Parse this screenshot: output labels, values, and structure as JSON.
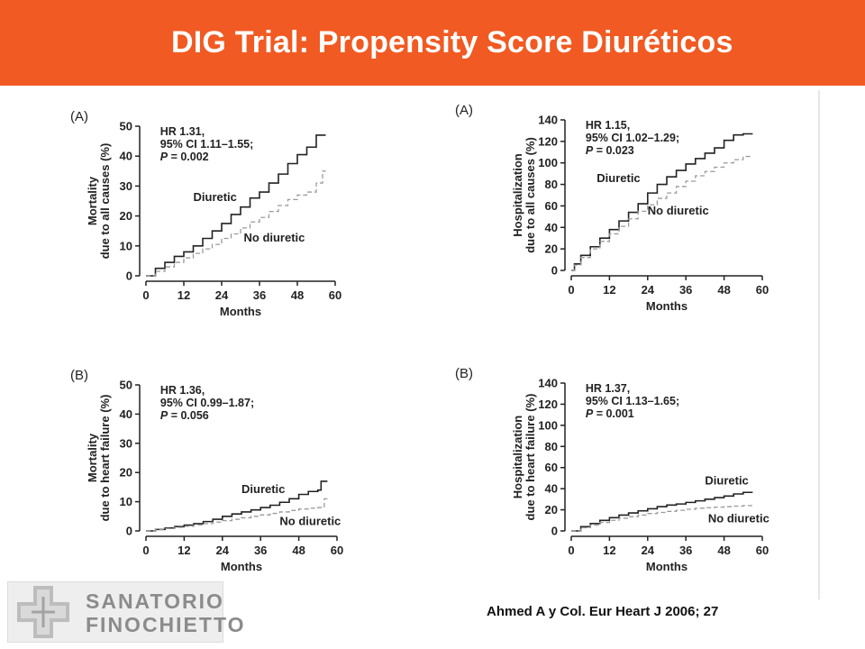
{
  "slide": {
    "title": "DIG Trial: Propensity Score Diuréticos",
    "citation": "Ahmed A y Col. Eur Heart J 2006; 27",
    "logo": {
      "line1": "SANATORIO",
      "line2": "FINOCHIETTO"
    }
  },
  "colors": {
    "banner": "#f15a22",
    "diuretic": "#222222",
    "no_diuretic": "#9a9a9a"
  },
  "chart_data": [
    {
      "type": "line",
      "panel_label": "(A)",
      "xlabel": "Months",
      "ylabel_line1": "Mortality",
      "ylabel_line2": "due to all causes (%)",
      "xlim": [
        0,
        60
      ],
      "ylim": [
        0,
        50
      ],
      "xticks": [
        0,
        12,
        24,
        36,
        48,
        60
      ],
      "yticks": [
        0,
        10,
        20,
        30,
        40,
        50
      ],
      "annotation": [
        "HR 1.31,",
        "95% CI 1.11–1.55;",
        "P = 0.002"
      ],
      "series": [
        {
          "name": "Diuretic",
          "style": "solid",
          "x": [
            0,
            3,
            6,
            9,
            12,
            15,
            18,
            21,
            24,
            27,
            30,
            33,
            36,
            39,
            42,
            45,
            48,
            51,
            54,
            57
          ],
          "y": [
            0,
            2.5,
            4.5,
            6.5,
            8,
            10,
            12.5,
            15,
            17.5,
            20.5,
            23,
            26,
            28,
            31,
            34,
            37.5,
            40.5,
            43,
            47,
            47
          ]
        },
        {
          "name": "No diuretic",
          "style": "dashed",
          "x": [
            0,
            3,
            6,
            9,
            12,
            15,
            18,
            21,
            24,
            27,
            30,
            33,
            36,
            39,
            42,
            45,
            48,
            51,
            54,
            56,
            57
          ],
          "y": [
            0,
            1.5,
            3,
            4.5,
            6,
            7.5,
            9,
            10.5,
            12.5,
            14,
            16,
            18,
            19.5,
            21.5,
            23.5,
            25.5,
            27,
            28,
            31,
            35,
            35
          ]
        }
      ],
      "series_labels": [
        {
          "text": "Diuretic",
          "x": 15,
          "y": 25
        },
        {
          "text": "No diuretic",
          "x": 31,
          "y": 11.5
        }
      ]
    },
    {
      "type": "line",
      "panel_label": "(A)",
      "xlabel": "Months",
      "ylabel_line1": "Hospitalization",
      "ylabel_line2": "due to all causes (%)",
      "xlim": [
        0,
        60
      ],
      "ylim": [
        0,
        140
      ],
      "xticks": [
        0,
        12,
        24,
        36,
        48,
        60
      ],
      "yticks": [
        0,
        20,
        40,
        60,
        80,
        100,
        120,
        140
      ],
      "annotation": [
        "HR 1.15,",
        "95% CI 1.02–1.29;",
        "P = 0.023"
      ],
      "series": [
        {
          "name": "Diuretic",
          "style": "solid",
          "x": [
            0,
            1,
            3,
            6,
            9,
            12,
            15,
            18,
            21,
            24,
            27,
            30,
            33,
            36,
            39,
            42,
            45,
            48,
            51,
            54,
            57
          ],
          "y": [
            0,
            6,
            14,
            22,
            30,
            38,
            46,
            54,
            62,
            72,
            80,
            87,
            93,
            99,
            104,
            109,
            114,
            121,
            126,
            127,
            127
          ]
        },
        {
          "name": "No diuretic",
          "style": "dashed",
          "x": [
            0,
            1,
            3,
            6,
            9,
            12,
            15,
            18,
            21,
            24,
            27,
            30,
            33,
            36,
            39,
            42,
            45,
            48,
            51,
            54,
            57
          ],
          "y": [
            0,
            5,
            12,
            20,
            27,
            34,
            41,
            48,
            55,
            61,
            67,
            72,
            78,
            83,
            88,
            92,
            96,
            100,
            103,
            106,
            106
          ]
        }
      ],
      "series_labels": [
        {
          "text": "Diuretic",
          "x": 8,
          "y": 82
        },
        {
          "text": "No diuretic",
          "x": 24,
          "y": 52
        }
      ]
    },
    {
      "type": "line",
      "panel_label": "(B)",
      "xlabel": "Months",
      "ylabel_line1": "Mortality",
      "ylabel_line2": "due to heart failure (%)",
      "xlim": [
        0,
        60
      ],
      "ylim": [
        0,
        50
      ],
      "xticks": [
        0,
        12,
        24,
        36,
        48,
        60
      ],
      "yticks": [
        0,
        10,
        20,
        30,
        40,
        50
      ],
      "annotation": [
        "HR 1.36,",
        "95% CI 0.99–1.87;",
        "P = 0.056"
      ],
      "series": [
        {
          "name": "Diuretic",
          "style": "solid",
          "x": [
            0,
            3,
            6,
            9,
            12,
            15,
            18,
            21,
            24,
            27,
            30,
            33,
            36,
            39,
            42,
            45,
            48,
            51,
            54,
            55,
            57
          ],
          "y": [
            0,
            0.5,
            1,
            1.5,
            2,
            2.5,
            3.2,
            4,
            5,
            5.8,
            6.5,
            7.2,
            8,
            8.8,
            9.8,
            11,
            12.5,
            13.5,
            14,
            17,
            17
          ]
        },
        {
          "name": "No diuretic",
          "style": "dashed",
          "x": [
            0,
            3,
            6,
            9,
            12,
            15,
            18,
            21,
            24,
            27,
            30,
            33,
            36,
            39,
            42,
            45,
            48,
            51,
            54,
            56,
            57
          ],
          "y": [
            0,
            0.4,
            0.8,
            1.2,
            1.6,
            2,
            2.5,
            3,
            3.5,
            4,
            4.5,
            5,
            5.5,
            6,
            6.5,
            7,
            7.5,
            7.8,
            8,
            11,
            11
          ]
        }
      ],
      "series_labels": [
        {
          "text": "Diuretic",
          "x": 30,
          "y": 13
        },
        {
          "text": "No diuretic",
          "x": 42,
          "y": 2
        }
      ]
    },
    {
      "type": "line",
      "panel_label": "(B)",
      "xlabel": "Months",
      "ylabel_line1": "Hospitalization",
      "ylabel_line2": "due to heart failure (%)",
      "xlim": [
        0,
        60
      ],
      "ylim": [
        0,
        140
      ],
      "xticks": [
        0,
        12,
        24,
        36,
        48,
        60
      ],
      "yticks": [
        0,
        20,
        40,
        60,
        80,
        100,
        120,
        140
      ],
      "annotation": [
        "HR 1.37,",
        "95% CI 1.13–1.65;",
        "P = 0.001"
      ],
      "series": [
        {
          "name": "Diuretic",
          "style": "solid",
          "x": [
            0,
            3,
            6,
            9,
            12,
            15,
            18,
            21,
            24,
            27,
            30,
            33,
            36,
            39,
            42,
            45,
            48,
            51,
            54,
            57
          ],
          "y": [
            0,
            4,
            7,
            10,
            12.5,
            15,
            17,
            19,
            21,
            23,
            24.5,
            25.5,
            27,
            28.5,
            30,
            31.5,
            33,
            35,
            36.5,
            36.5
          ]
        },
        {
          "name": "No diuretic",
          "style": "dashed",
          "x": [
            0,
            3,
            6,
            9,
            12,
            15,
            18,
            21,
            24,
            27,
            30,
            33,
            36,
            39,
            42,
            45,
            48,
            51,
            54,
            57
          ],
          "y": [
            0,
            3,
            5.5,
            8,
            10,
            12,
            13.5,
            15,
            16.5,
            17.5,
            18.5,
            19.5,
            20.5,
            21.5,
            22,
            22.5,
            23,
            23.5,
            24,
            24
          ]
        }
      ],
      "series_labels": [
        {
          "text": "Diuretic",
          "x": 42,
          "y": 44
        },
        {
          "text": "No diuretic",
          "x": 43,
          "y": 8
        }
      ]
    }
  ]
}
